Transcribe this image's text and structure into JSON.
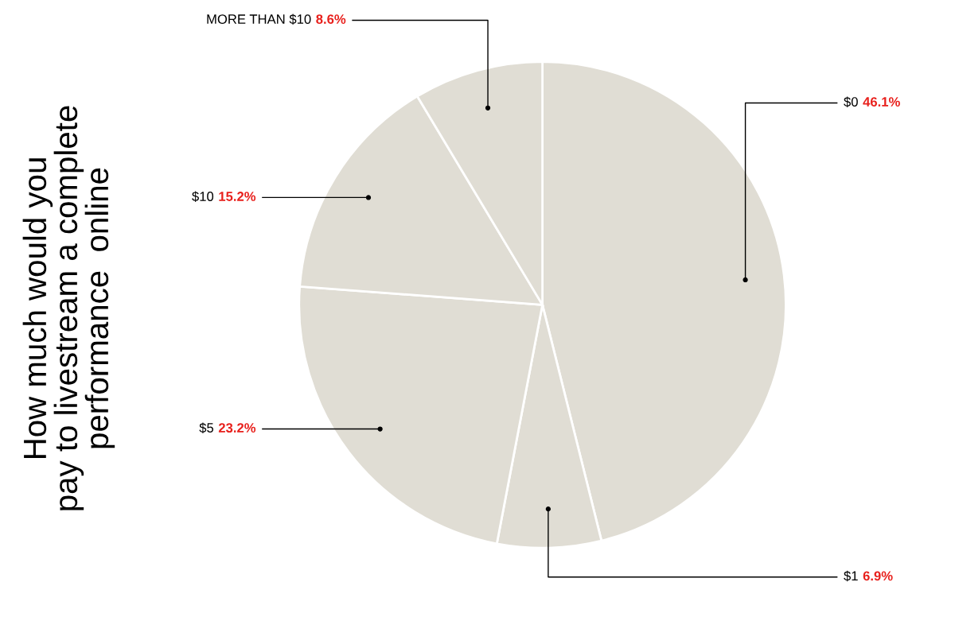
{
  "chart_data": {
    "type": "pie",
    "title": "How much would you\npay to livestream a complete\nperformance  online",
    "categories": [
      "$0",
      "$1",
      "$5",
      "$10",
      "MORE THAN $10"
    ],
    "values": [
      46.1,
      6.9,
      23.2,
      15.2,
      8.6
    ],
    "colors": [
      "#e0ddd4",
      "#e0ddd4",
      "#e0ddd4",
      "#e0ddd4",
      "#e0ddd4"
    ],
    "value_labels": [
      "46.1%",
      "6.9%",
      "23.2%",
      "15.2%",
      "8.6%"
    ]
  }
}
